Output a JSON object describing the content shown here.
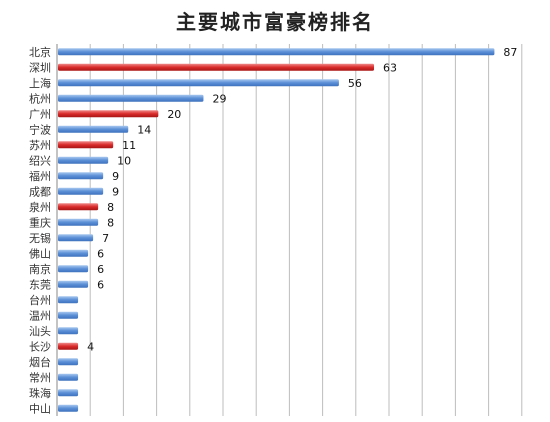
{
  "chart_data": {
    "type": "bar",
    "orientation": "horizontal",
    "title": "主要城市富豪榜排名",
    "categories": [
      "北京",
      "深圳",
      "上海",
      "杭州",
      "广州",
      "宁波",
      "苏州",
      "绍兴",
      "福州",
      "成都",
      "泉州",
      "重庆",
      "无锡",
      "佛山",
      "南京",
      "东莞",
      "台州",
      "温州",
      "汕头",
      "长沙",
      "烟台",
      "常州",
      "珠海",
      "中山"
    ],
    "values": [
      87,
      63,
      56,
      29,
      20,
      14,
      11,
      10,
      9,
      9,
      8,
      8,
      7,
      6,
      6,
      6,
      4,
      4,
      4,
      4,
      4,
      4,
      4,
      4
    ],
    "value_labels": [
      "87",
      "63",
      "56",
      "29",
      "20",
      "14",
      "11",
      "10",
      "9",
      "9",
      "8",
      "8",
      "7",
      "6",
      "6",
      "6",
      "",
      "",
      "",
      "4",
      "",
      "",
      "",
      ""
    ],
    "highlight": [
      "深圳",
      "广州",
      "苏州",
      "泉州",
      "长沙"
    ],
    "xlim": [
      0,
      90
    ],
    "grid": true,
    "colors": {
      "normal": "#5b8fd6",
      "highlight": "#d92b2b"
    }
  }
}
